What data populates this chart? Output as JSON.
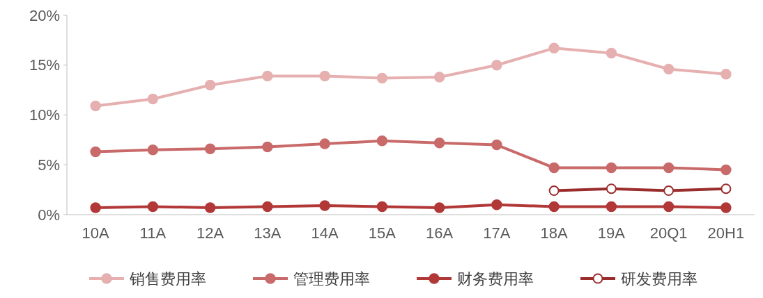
{
  "chart_data": {
    "type": "line",
    "categories": [
      "10A",
      "11A",
      "12A",
      "13A",
      "14A",
      "15A",
      "16A",
      "17A",
      "18A",
      "19A",
      "20Q1",
      "20H1"
    ],
    "series": [
      {
        "name": "销售费用率",
        "color": "#e6b0b0",
        "values": [
          10.9,
          11.6,
          13.0,
          13.9,
          13.9,
          13.7,
          13.8,
          15.0,
          16.7,
          16.2,
          14.6,
          14.1
        ]
      },
      {
        "name": "管理费用率",
        "color": "#c96a6a",
        "values": [
          6.3,
          6.5,
          6.6,
          6.8,
          7.1,
          7.4,
          7.2,
          7.0,
          4.7,
          4.7,
          4.7,
          4.5
        ]
      },
      {
        "name": "财务费用率",
        "color": "#b23838",
        "values": [
          0.7,
          0.8,
          0.7,
          0.8,
          0.9,
          0.8,
          0.7,
          1.0,
          0.8,
          0.8,
          0.8,
          0.7
        ]
      },
      {
        "name": "研发费用率",
        "color": "#9a2c2c",
        "marker": "circle-open",
        "values": [
          null,
          null,
          null,
          null,
          null,
          null,
          null,
          null,
          2.4,
          2.6,
          2.4,
          2.6
        ]
      }
    ],
    "ylim": [
      0,
      20
    ],
    "yticks": [
      {
        "value": 0,
        "label": "0%"
      },
      {
        "value": 5,
        "label": "5%"
      },
      {
        "value": 10,
        "label": "10%"
      },
      {
        "value": 15,
        "label": "15%"
      },
      {
        "value": 20,
        "label": "20%"
      }
    ],
    "marker": "circle",
    "legend": "bottom"
  }
}
